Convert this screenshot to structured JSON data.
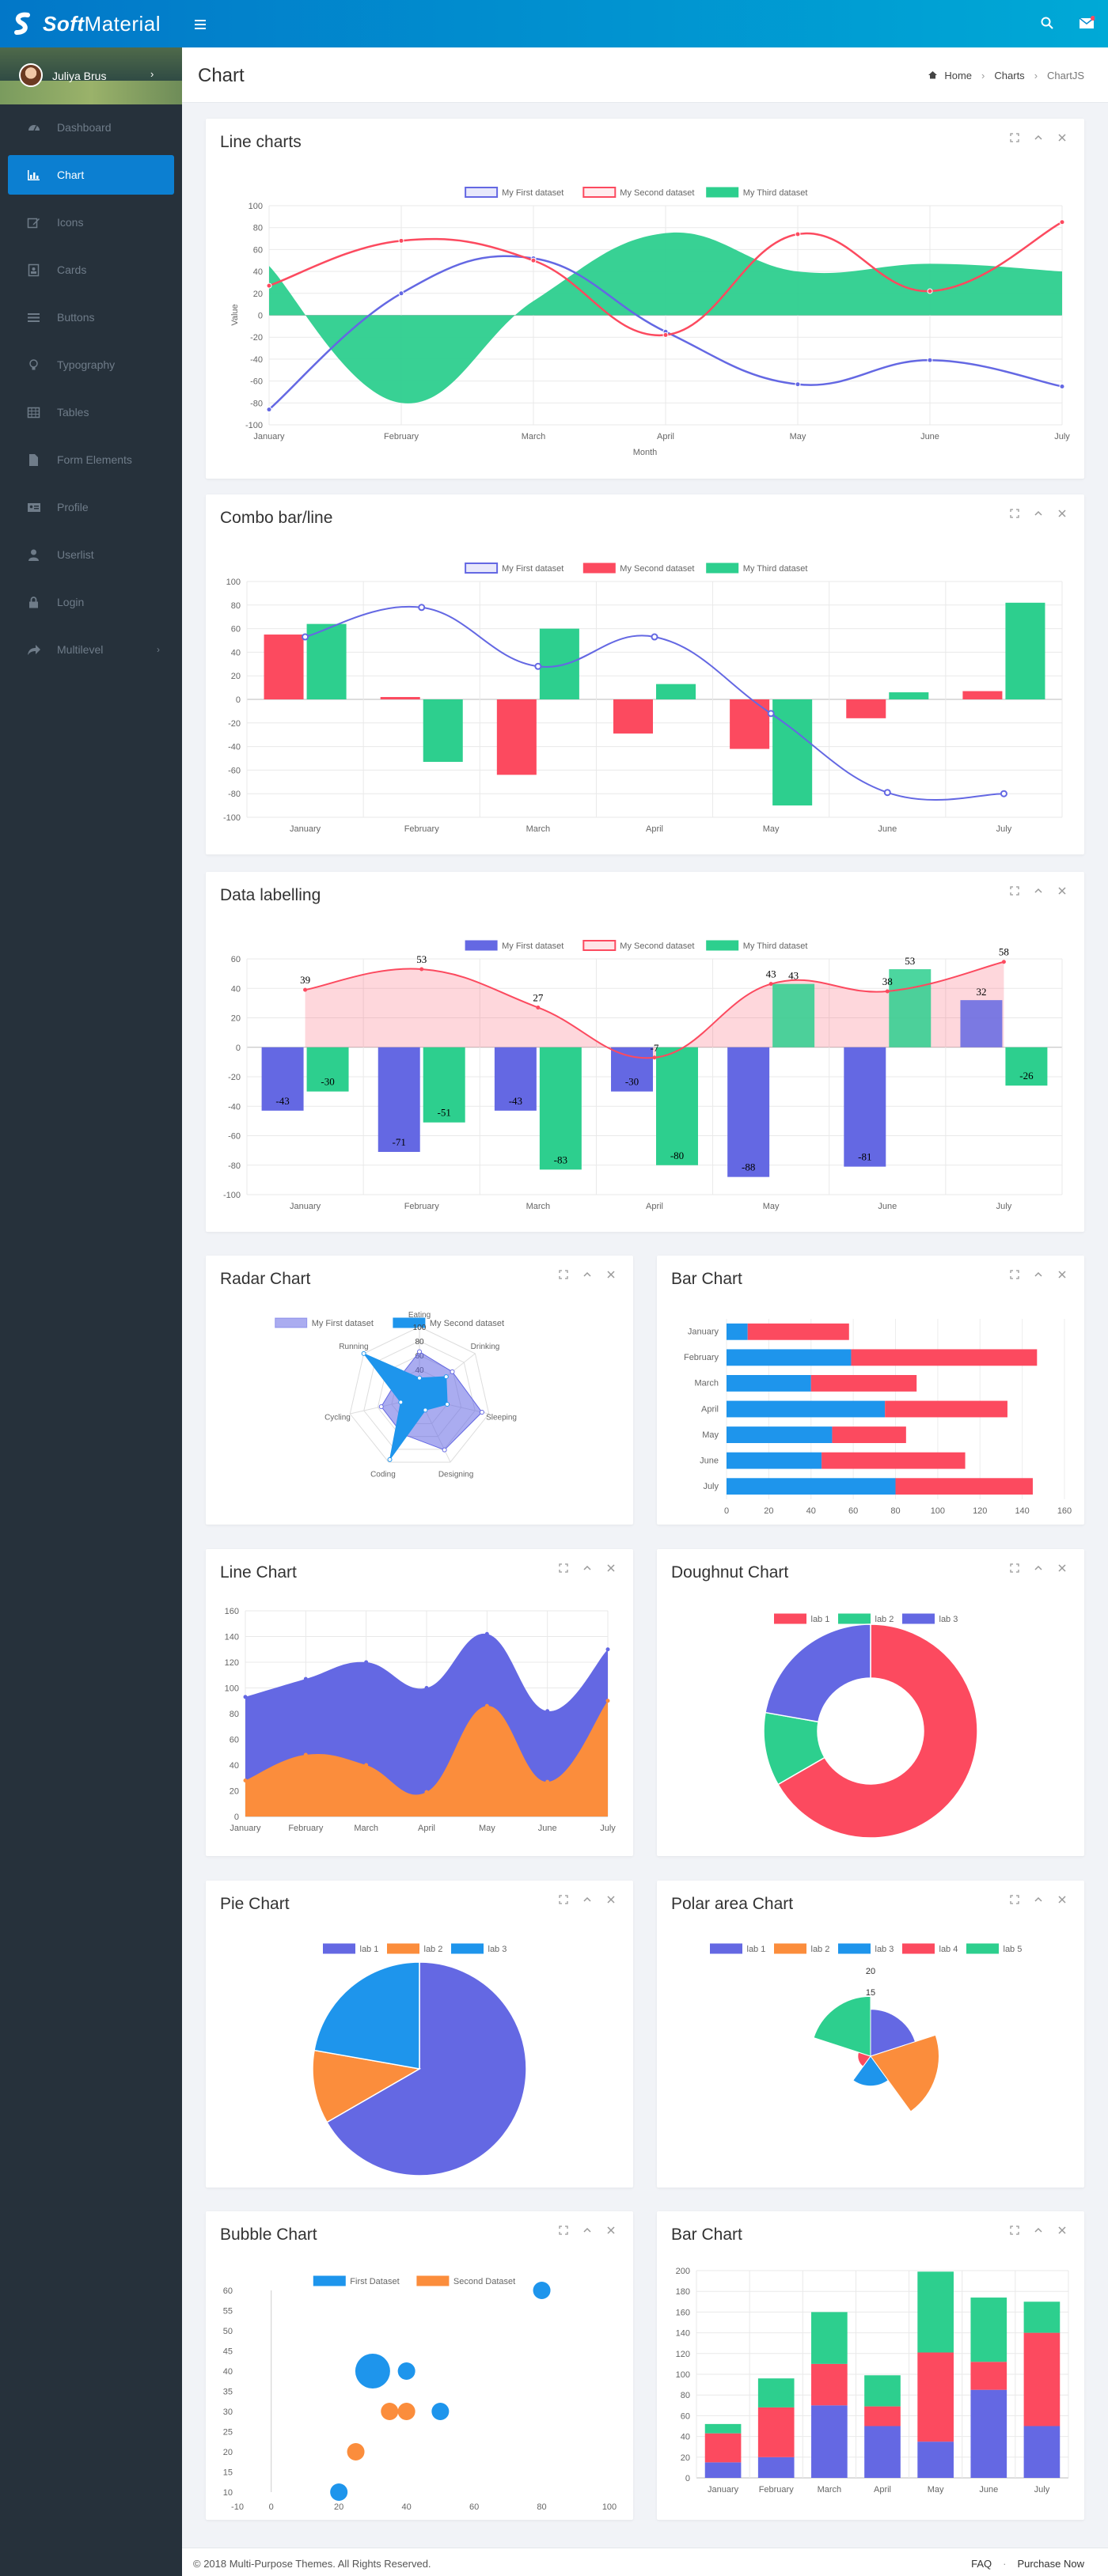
{
  "brand": {
    "name_bold": "Soft",
    "name_rest": "Material"
  },
  "topbar": {
    "menu_icon": "hamburger-icon",
    "search_icon": "search-icon",
    "mail_icon": "envelope-icon"
  },
  "user": {
    "name": "Juliya Brus"
  },
  "sidebar": {
    "items": [
      {
        "label": "Dashboard",
        "icon": "dashboard-icon"
      },
      {
        "label": "Chart",
        "icon": "bar-chart-icon",
        "active": true
      },
      {
        "label": "Icons",
        "icon": "edit-icon"
      },
      {
        "label": "Cards",
        "icon": "card-icon"
      },
      {
        "label": "Buttons",
        "icon": "list-icon"
      },
      {
        "label": "Typography",
        "icon": "lightbulb-icon"
      },
      {
        "label": "Tables",
        "icon": "table-icon"
      },
      {
        "label": "Form Elements",
        "icon": "file-icon"
      },
      {
        "label": "Profile",
        "icon": "id-card-icon"
      },
      {
        "label": "Userlist",
        "icon": "user-icon"
      },
      {
        "label": "Login",
        "icon": "lock-icon"
      },
      {
        "label": "Multilevel",
        "icon": "share-icon",
        "chevron": true
      }
    ]
  },
  "header": {
    "title": "Chart",
    "breadcrumb": [
      "Home",
      "Charts",
      "ChartJS"
    ]
  },
  "cards": {
    "line": "Line charts",
    "combo": "Combo bar/line",
    "labelling": "Data labelling",
    "radar": "Radar Chart",
    "hbar": "Bar Chart",
    "area": "Line Chart",
    "doughnut": "Doughnut Chart",
    "pie": "Pie Chart",
    "polar": "Polar area Chart",
    "bubble": "Bubble Chart",
    "stacked": "Bar Chart"
  },
  "colors": {
    "blue": "#6468e3",
    "red": "#fc4a5f",
    "green": "#2dcf8e",
    "sky": "#1e95ec",
    "orange": "#fb8d3c",
    "accent": "#0c7fd1"
  },
  "chart_data": [
    {
      "id": "line",
      "type": "line",
      "legend": [
        "My First dataset",
        "My Second dataset",
        "My Third dataset"
      ],
      "categories": [
        "January",
        "February",
        "March",
        "April",
        "May",
        "June",
        "July"
      ],
      "series": [
        {
          "name": "My First dataset",
          "values": [
            -86,
            20,
            52,
            -15,
            -63,
            -41,
            -65
          ]
        },
        {
          "name": "My Second dataset",
          "values": [
            27,
            68,
            50,
            -18,
            74,
            22,
            85
          ]
        },
        {
          "name": "My Third dataset",
          "values": [
            45,
            -80,
            13,
            75,
            40,
            47,
            40
          ]
        }
      ],
      "ylim": [
        -100,
        100
      ],
      "yticks": [
        100,
        80,
        60,
        40,
        20,
        0,
        -20,
        -40,
        -60,
        -80,
        -100
      ],
      "xlabel": "Month",
      "ylabel": "Value"
    },
    {
      "id": "combo",
      "type": "bar",
      "legend": [
        "My First dataset",
        "My Second dataset",
        "My Third dataset"
      ],
      "categories": [
        "January",
        "February",
        "March",
        "April",
        "May",
        "June",
        "July"
      ],
      "series": [
        {
          "name": "My First dataset",
          "values": [
            53,
            78,
            28,
            53,
            -12,
            -79,
            -80
          ],
          "kind": "line"
        },
        {
          "name": "My Second dataset",
          "values": [
            55,
            2,
            -64,
            -29,
            -42,
            -16,
            7
          ]
        },
        {
          "name": "My Third dataset",
          "values": [
            64,
            -53,
            60,
            13,
            -90,
            6,
            82
          ]
        }
      ],
      "ylim": [
        -100,
        100
      ],
      "yticks": [
        100,
        80,
        60,
        40,
        20,
        0,
        -20,
        -40,
        -60,
        -80,
        -100
      ]
    },
    {
      "id": "labelling",
      "type": "bar",
      "legend": [
        "My First dataset",
        "My Second dataset",
        "My Third dataset"
      ],
      "categories": [
        "January",
        "February",
        "March",
        "April",
        "May",
        "June",
        "July"
      ],
      "series": [
        {
          "name": "My First dataset",
          "values": [
            -43,
            -71,
            -43,
            -30,
            -88,
            -81,
            32
          ]
        },
        {
          "name": "My Second dataset",
          "values": [
            39,
            53,
            27,
            -7,
            43,
            38,
            58
          ],
          "kind": "area"
        },
        {
          "name": "My Third dataset",
          "values": [
            -30,
            -51,
            -83,
            -80,
            43,
            53,
            -26
          ]
        }
      ],
      "ylim": [
        -100,
        60
      ],
      "yticks": [
        60,
        40,
        20,
        0,
        -20,
        -40,
        -60,
        -80,
        -100
      ]
    },
    {
      "id": "radar",
      "type": "radar",
      "legend": [
        "My First dataset",
        "My Second dataset"
      ],
      "categories": [
        "Eating",
        "Drinking",
        "Sleeping",
        "Designing",
        "Coding",
        "Cycling",
        "Running"
      ],
      "series": [
        {
          "name": "My First dataset",
          "values": [
            65,
            59,
            90,
            81,
            56,
            55,
            40
          ]
        },
        {
          "name": "My Second dataset",
          "values": [
            28,
            48,
            40,
            19,
            96,
            27,
            100
          ]
        }
      ],
      "ticks": [
        40,
        60,
        80,
        100
      ]
    },
    {
      "id": "hbar",
      "type": "bar",
      "orientation": "horizontal",
      "categories": [
        "January",
        "February",
        "March",
        "April",
        "May",
        "June",
        "July"
      ],
      "series": [
        {
          "values": [
            10,
            59,
            40,
            75,
            50,
            45,
            80
          ]
        },
        {
          "values": [
            48,
            88,
            50,
            58,
            35,
            68,
            65
          ]
        }
      ],
      "xlim": [
        0,
        160
      ],
      "xticks": [
        0,
        20,
        40,
        60,
        80,
        100,
        120,
        140,
        160
      ]
    },
    {
      "id": "area",
      "type": "area",
      "categories": [
        "January",
        "February",
        "March",
        "April",
        "May",
        "June",
        "July"
      ],
      "series": [
        {
          "values": [
            28,
            48,
            40,
            19,
            86,
            27,
            90
          ]
        },
        {
          "values": [
            65,
            59,
            80,
            81,
            56,
            55,
            40
          ]
        }
      ],
      "ylim": [
        0,
        160
      ],
      "yticks": [
        160,
        140,
        120,
        100,
        80,
        60,
        40,
        20,
        0
      ]
    },
    {
      "id": "doughnut",
      "type": "pie",
      "legend": [
        "lab 1",
        "lab 2",
        "lab 3"
      ],
      "values": [
        300,
        50,
        100
      ]
    },
    {
      "id": "pie",
      "type": "pie",
      "legend": [
        "lab 1",
        "lab 2",
        "lab 3"
      ],
      "values": [
        300,
        50,
        100
      ]
    },
    {
      "id": "polar",
      "type": "polar",
      "legend": [
        "lab 1",
        "lab 2",
        "lab 3",
        "lab 4",
        "lab 5"
      ],
      "values": [
        11,
        16,
        7,
        3,
        14
      ],
      "ticks": [
        15,
        20
      ]
    },
    {
      "id": "bubble",
      "type": "scatter",
      "legend": [
        "First Dataset",
        "Second Dataset"
      ],
      "series": [
        {
          "name": "First Dataset",
          "points": [
            [
              20,
              10,
              5
            ],
            [
              30,
              40,
              10
            ],
            [
              40,
              40,
              5
            ],
            [
              50,
              30,
              5
            ],
            [
              80,
              60,
              5
            ]
          ]
        },
        {
          "name": "Second Dataset",
          "points": [
            [
              25,
              20,
              5
            ],
            [
              35,
              30,
              5
            ],
            [
              40,
              30,
              5
            ]
          ]
        }
      ],
      "xlim": [
        -10,
        100
      ],
      "xticks": [
        -10,
        0,
        20,
        40,
        60,
        80,
        100
      ],
      "ylim": [
        10,
        60
      ],
      "yticks": [
        60,
        55,
        50,
        45,
        40,
        35,
        30,
        25,
        20,
        15,
        10
      ]
    },
    {
      "id": "stacked",
      "type": "bar",
      "stacked": true,
      "categories": [
        "January",
        "February",
        "March",
        "April",
        "May",
        "June",
        "July"
      ],
      "series": [
        {
          "values": [
            15,
            20,
            70,
            50,
            35,
            85,
            50
          ]
        },
        {
          "values": [
            28,
            48,
            40,
            19,
            86,
            27,
            90
          ]
        },
        {
          "values": [
            9,
            28,
            50,
            30,
            78,
            62,
            30
          ]
        }
      ],
      "ylim": [
        0,
        200
      ],
      "yticks": [
        200,
        180,
        160,
        140,
        120,
        100,
        80,
        60,
        40,
        20,
        0
      ]
    }
  ],
  "footer": {
    "copyright": "© 2018 Multi-Purpose Themes. All Rights Reserved.",
    "links": [
      "FAQ",
      "Purchase Now"
    ]
  }
}
